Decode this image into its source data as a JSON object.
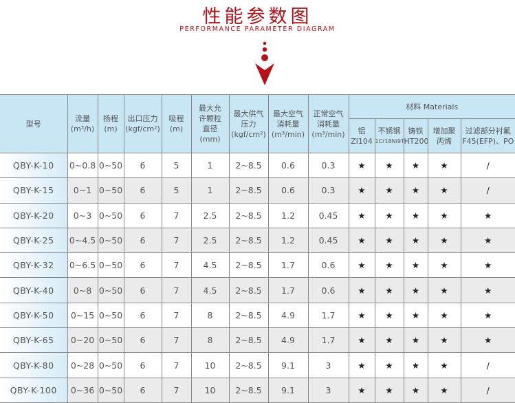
{
  "header": {
    "title": "性能参数图",
    "subtitle": "PERFORMANCE PARAMETER DIAGRAM",
    "accent_color": "#b3121a",
    "arrow_icon": "down-arrow-with-dots"
  },
  "table": {
    "columns": [
      {
        "cn": "型号",
        "unit": ""
      },
      {
        "cn": "流量",
        "unit": "(m³/h)"
      },
      {
        "cn": "扬程",
        "unit": "(m)"
      },
      {
        "cn": "出口压力",
        "unit": "(kgf/cm²)"
      },
      {
        "cn": "吸程",
        "unit": "(m)"
      },
      {
        "cn": "最大允许颗粒直径",
        "unit": "(mm)"
      },
      {
        "cn": "最大供气压力",
        "unit": "(kgf/cm²)"
      },
      {
        "cn": "最大空气消耗量",
        "unit": "(m³/min)"
      },
      {
        "cn": "正常空气消耗量",
        "unit": "(m³/min)"
      }
    ],
    "materials": {
      "label": "材料 Materials",
      "items": [
        {
          "cn": "铝",
          "code": "ZI104"
        },
        {
          "cn": "不锈钢",
          "code": "1Cr18Ni9Ti"
        },
        {
          "cn": "铸铁",
          "code": "HT200"
        },
        {
          "cn": "增加聚丙烯",
          "code": ""
        },
        {
          "cn": "过滤部分衬氟",
          "code": "F45(EFP)、PO"
        }
      ]
    },
    "rows": [
      [
        "QBY-K-10",
        "0~0.8",
        "0~50",
        "6",
        "5",
        "1",
        "2~8.5",
        "0.6",
        "0.3",
        "★",
        "★",
        "★",
        "★",
        "/"
      ],
      [
        "QBY-K-15",
        "0~1",
        "0~50",
        "6",
        "5",
        "1",
        "2~8.5",
        "0.6",
        "0.3",
        "★",
        "★",
        "★",
        "★",
        "/"
      ],
      [
        "QBY-K-20",
        "0~3",
        "0~50",
        "6",
        "7",
        "2.5",
        "2~8.5",
        "1.2",
        "0.45",
        "★",
        "★",
        "★",
        "★",
        "★"
      ],
      [
        "QBY-K-25",
        "0~4.5",
        "0~50",
        "6",
        "7",
        "2.5",
        "2~8.5",
        "1.2",
        "0.45",
        "★",
        "★",
        "★",
        "★",
        "★"
      ],
      [
        "QBY-K-32",
        "0~6.5",
        "0~50",
        "6",
        "7",
        "4.5",
        "2~8.5",
        "1.7",
        "0.6",
        "★",
        "★",
        "★",
        "★",
        "★"
      ],
      [
        "QBY-K-40",
        "0~8",
        "0~50",
        "6",
        "7",
        "4.5",
        "2~8.5",
        "1.7",
        "0.6",
        "★",
        "★",
        "★",
        "★",
        "★"
      ],
      [
        "QBY-K-50",
        "0~15",
        "0~50",
        "6",
        "7",
        "8",
        "2~8.5",
        "4.9",
        "1.7",
        "★",
        "★",
        "★",
        "★",
        "★"
      ],
      [
        "QBY-K-65",
        "0~20",
        "0~50",
        "6",
        "7",
        "8",
        "2~8.5",
        "4.9",
        "1.7",
        "★",
        "★",
        "★",
        "★",
        "★"
      ],
      [
        "QBY-K-80",
        "0~28",
        "0~50",
        "6",
        "7",
        "10",
        "2~8.5",
        "9.1",
        "3",
        "★",
        "★",
        "★",
        "★",
        "/"
      ],
      [
        "QBY-K-100",
        "0~36",
        "0~50",
        "6",
        "7",
        "10",
        "2~8.5",
        "9.1",
        "3",
        "★",
        "★",
        "★",
        "★",
        "/"
      ]
    ]
  }
}
